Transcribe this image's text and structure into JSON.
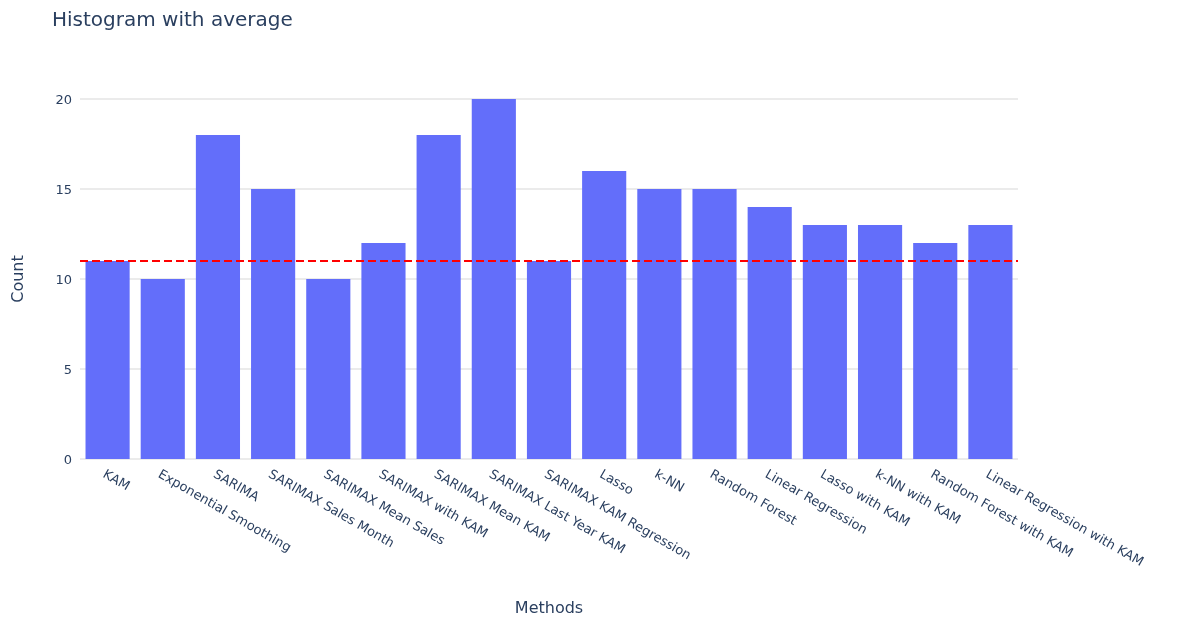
{
  "chart_data": {
    "type": "bar",
    "title": "Histogram with average",
    "xlabel": "Methods",
    "ylabel": "Count",
    "categories": [
      "KAM",
      "Exponential Smoothing",
      "SARIMA",
      "SARIMAX Sales Month",
      "SARIMAX Mean Sales",
      "SARIMAX with KAM",
      "SARIMAX Mean KAM",
      "SARIMAX Last Year KAM",
      "SARIMAX KAM Regression",
      "Lasso",
      "k-NN",
      "Random Forest",
      "Linear Regression",
      "Lasso with KAM",
      "k-NN with KAM",
      "Random Forest with KAM",
      "Linear Regression with KAM"
    ],
    "values": [
      11,
      10,
      18,
      15,
      10,
      12,
      18,
      20,
      11,
      16,
      15,
      15,
      14,
      13,
      13,
      12,
      13
    ],
    "color": "#636efa",
    "ylim": [
      0,
      20
    ],
    "yticks": [
      0,
      5,
      10,
      15,
      20
    ],
    "grid": "y",
    "ref_lines": [
      {
        "axis": "y",
        "value": 11,
        "color": "#ff0000",
        "line_style": "dashed"
      }
    ]
  }
}
